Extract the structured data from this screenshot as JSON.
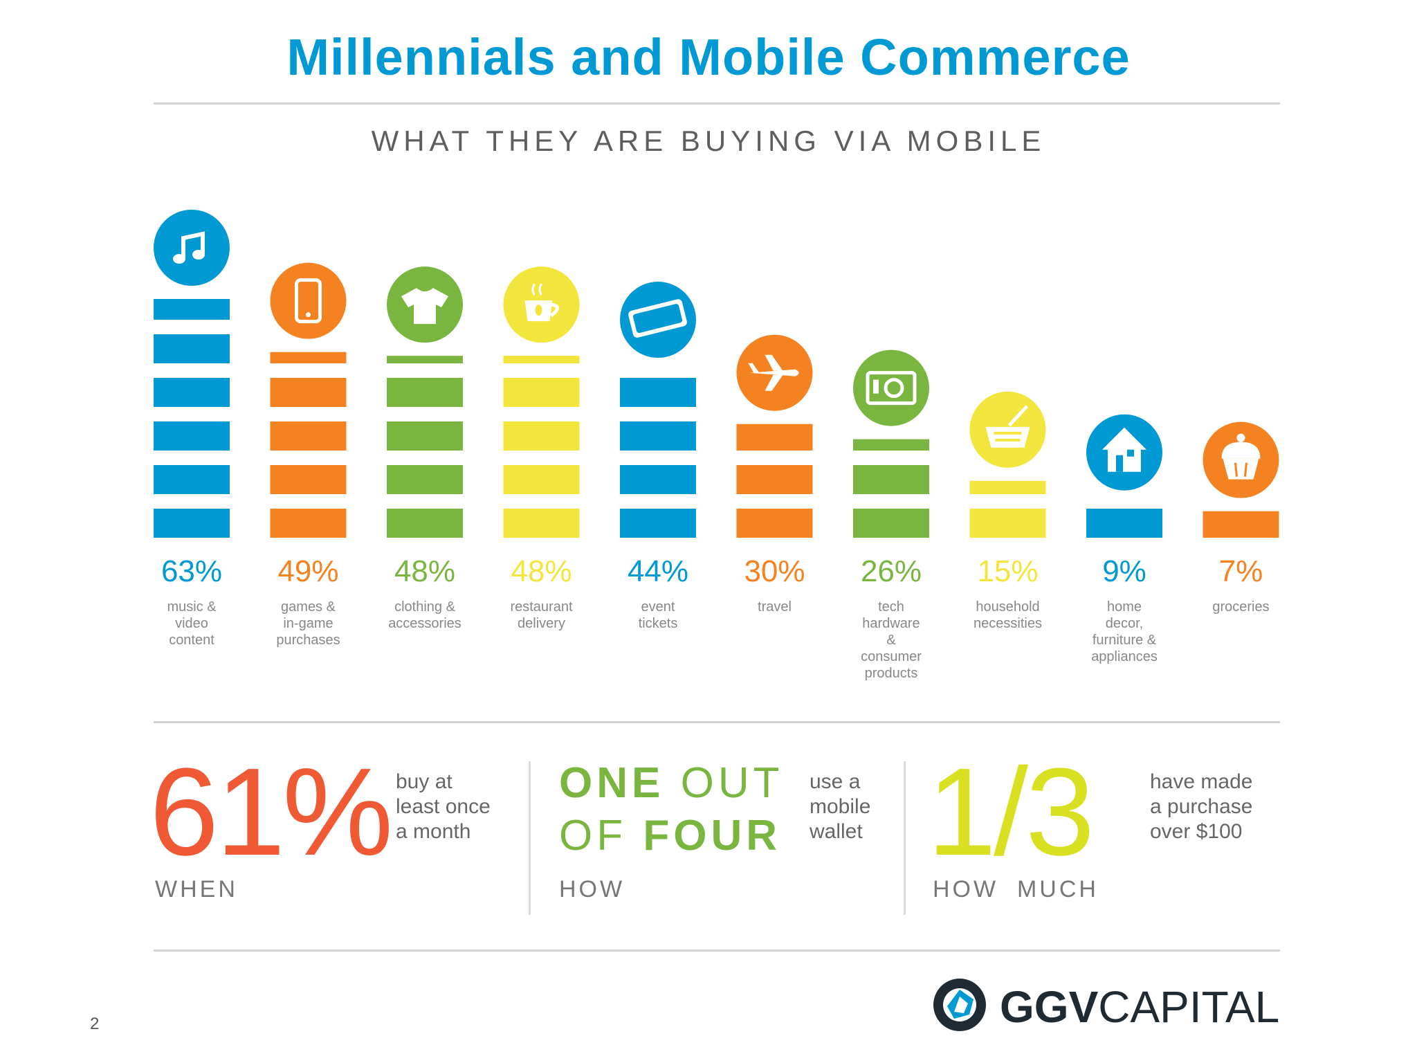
{
  "title": "Millennials and Mobile Commerce",
  "subtitle": "WHAT THEY ARE BUYING VIA MOBILE",
  "colors": {
    "blue": "#0099d4",
    "orange": "#f58220",
    "green": "#7ab540",
    "yellow": "#f2e53c",
    "red": "#ef5a35",
    "lime": "#d9e021"
  },
  "chart_data": {
    "type": "bar",
    "title": "WHAT THEY ARE BUYING VIA MOBILE",
    "ylim": [
      0,
      63
    ],
    "categories": [
      {
        "pct": "63%",
        "value": 63,
        "label": [
          "music &",
          "video",
          "content"
        ],
        "color": "#0099d4",
        "icon": "music-note-icon"
      },
      {
        "pct": "49%",
        "value": 49,
        "label": [
          "games &",
          "in-game",
          "purchases"
        ],
        "color": "#f58220",
        "icon": "mobile-phone-icon"
      },
      {
        "pct": "48%",
        "value": 48,
        "label": [
          "clothing &",
          "accessories"
        ],
        "color": "#7ab540",
        "icon": "t-shirt-icon"
      },
      {
        "pct": "48%",
        "value": 48,
        "label": [
          "restaurant",
          "delivery"
        ],
        "color": "#f2e53c",
        "icon": "coffee-cup-icon"
      },
      {
        "pct": "44%",
        "value": 44,
        "label": [
          "event",
          "tickets"
        ],
        "color": "#0099d4",
        "icon": "ticket-icon"
      },
      {
        "pct": "30%",
        "value": 30,
        "label": [
          "travel"
        ],
        "color": "#f58220",
        "icon": "airplane-icon"
      },
      {
        "pct": "26%",
        "value": 26,
        "label": [
          "tech",
          "hardware",
          "&",
          "consumer",
          "products"
        ],
        "color": "#7ab540",
        "icon": "camera-icon"
      },
      {
        "pct": "15%",
        "value": 15,
        "label": [
          "household",
          "necessities"
        ],
        "color": "#f2e53c",
        "icon": "basket-icon"
      },
      {
        "pct": "9%",
        "value": 9,
        "label": [
          "home",
          "decor,",
          "furniture &",
          "appliances"
        ],
        "color": "#0099d4",
        "icon": "house-icon"
      },
      {
        "pct": "7%",
        "value": 7,
        "label": [
          "groceries"
        ],
        "color": "#f58220",
        "icon": "cupcake-icon"
      }
    ]
  },
  "stats": {
    "when": {
      "big": "61%",
      "text": [
        "buy at",
        "least once",
        "a month"
      ],
      "caption": "WHEN"
    },
    "how": {
      "line1_bold": "ONE",
      "line1_light": "OUT",
      "line2_light": "OF",
      "line2_bold": "FOUR",
      "text": [
        "use a",
        "mobile",
        "wallet"
      ],
      "caption": "HOW"
    },
    "how_much": {
      "big": "1/3",
      "text": [
        "have made",
        "a purchase",
        "over $100"
      ],
      "caption": "HOW  MUCH"
    }
  },
  "page_number": "2",
  "logo": {
    "bold": "GGV",
    "light": "CAPITAL"
  }
}
